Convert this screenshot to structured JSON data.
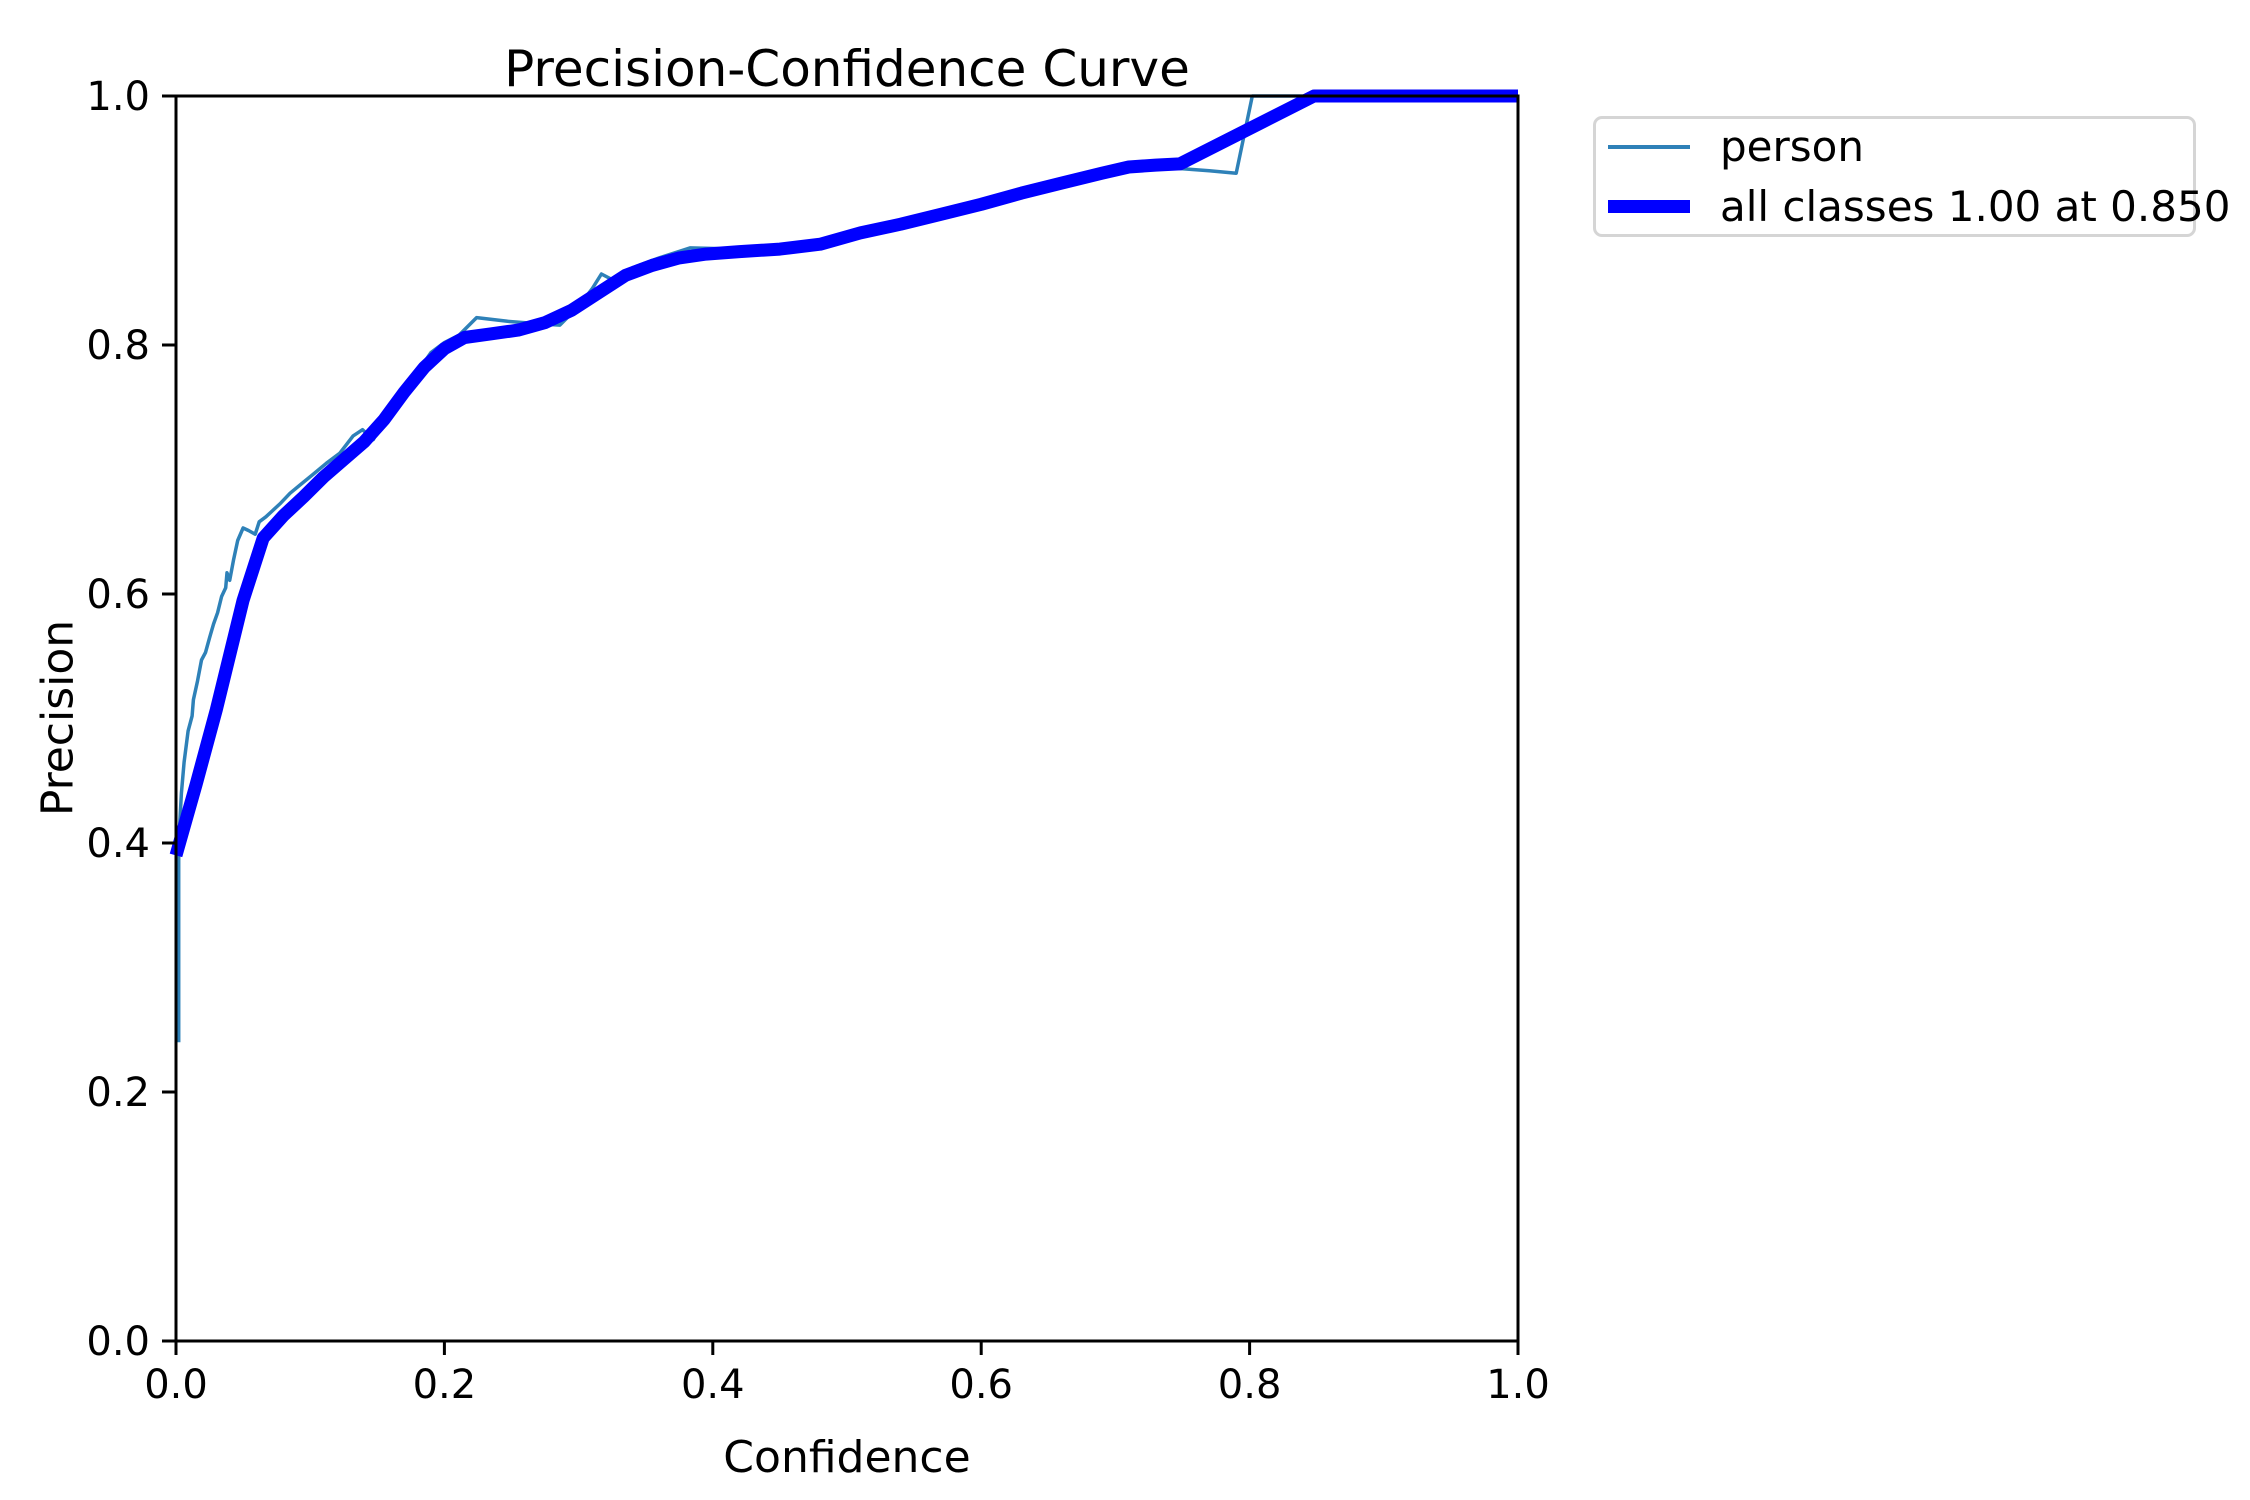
{
  "chart_data": {
    "type": "line",
    "title": "Precision-Confidence Curve",
    "xlabel": "Confidence",
    "ylabel": "Precision",
    "xlim": [
      0.0,
      1.0
    ],
    "ylim": [
      0.0,
      1.0
    ],
    "x_ticks": [
      "0.0",
      "0.2",
      "0.4",
      "0.6",
      "0.8",
      "1.0"
    ],
    "y_ticks": [
      "0.0",
      "0.2",
      "0.4",
      "0.6",
      "0.8",
      "1.0"
    ],
    "grid": false,
    "legend": {
      "position": "outside-top-right",
      "border_color": "#d5d5d5",
      "background": "#ffffff"
    },
    "axis_color": "#000000",
    "series": [
      {
        "name": "person",
        "label": "person",
        "color": "#2e81b8",
        "line_width": 3.5,
        "points": [
          [
            0.002,
            0.24
          ],
          [
            0.002,
            0.4
          ],
          [
            0.004,
            0.44
          ],
          [
            0.006,
            0.465
          ],
          [
            0.009,
            0.49
          ],
          [
            0.012,
            0.502
          ],
          [
            0.013,
            0.515
          ],
          [
            0.016,
            0.53
          ],
          [
            0.019,
            0.547
          ],
          [
            0.022,
            0.553
          ],
          [
            0.025,
            0.565
          ],
          [
            0.028,
            0.576
          ],
          [
            0.031,
            0.585
          ],
          [
            0.034,
            0.598
          ],
          [
            0.037,
            0.605
          ],
          [
            0.038,
            0.617
          ],
          [
            0.04,
            0.611
          ],
          [
            0.043,
            0.628
          ],
          [
            0.046,
            0.643
          ],
          [
            0.05,
            0.653
          ],
          [
            0.054,
            0.651
          ],
          [
            0.059,
            0.648
          ],
          [
            0.062,
            0.658
          ],
          [
            0.067,
            0.662
          ],
          [
            0.072,
            0.667
          ],
          [
            0.078,
            0.673
          ],
          [
            0.085,
            0.681
          ],
          [
            0.093,
            0.688
          ],
          [
            0.102,
            0.696
          ],
          [
            0.112,
            0.705
          ],
          [
            0.122,
            0.713
          ],
          [
            0.132,
            0.727
          ],
          [
            0.139,
            0.732
          ],
          [
            0.147,
            0.724
          ],
          [
            0.154,
            0.738
          ],
          [
            0.163,
            0.752
          ],
          [
            0.172,
            0.766
          ],
          [
            0.181,
            0.78
          ],
          [
            0.19,
            0.794
          ],
          [
            0.2,
            0.802
          ],
          [
            0.211,
            0.808
          ],
          [
            0.224,
            0.822
          ],
          [
            0.247,
            0.819
          ],
          [
            0.27,
            0.817
          ],
          [
            0.286,
            0.816
          ],
          [
            0.3,
            0.831
          ],
          [
            0.31,
            0.845
          ],
          [
            0.317,
            0.857
          ],
          [
            0.326,
            0.852
          ],
          [
            0.34,
            0.862
          ],
          [
            0.36,
            0.87
          ],
          [
            0.383,
            0.878
          ],
          [
            0.42,
            0.877
          ],
          [
            0.46,
            0.879
          ],
          [
            0.5,
            0.888
          ],
          [
            0.55,
            0.902
          ],
          [
            0.6,
            0.915
          ],
          [
            0.65,
            0.93
          ],
          [
            0.69,
            0.941
          ],
          [
            0.715,
            0.944
          ],
          [
            0.745,
            0.942
          ],
          [
            0.77,
            0.94
          ],
          [
            0.79,
            0.938
          ],
          [
            0.802,
            1.0
          ],
          [
            1.0,
            1.0
          ]
        ]
      },
      {
        "name": "all-classes",
        "label": "all classes 1.00 at 0.850",
        "color": "#0000ff",
        "line_width": 13,
        "points": [
          [
            0.0,
            0.39
          ],
          [
            0.015,
            0.447
          ],
          [
            0.03,
            0.507
          ],
          [
            0.05,
            0.595
          ],
          [
            0.065,
            0.645
          ],
          [
            0.08,
            0.663
          ],
          [
            0.095,
            0.678
          ],
          [
            0.11,
            0.694
          ],
          [
            0.125,
            0.708
          ],
          [
            0.14,
            0.722
          ],
          [
            0.155,
            0.74
          ],
          [
            0.17,
            0.762
          ],
          [
            0.185,
            0.782
          ],
          [
            0.2,
            0.797
          ],
          [
            0.215,
            0.806
          ],
          [
            0.235,
            0.809
          ],
          [
            0.255,
            0.812
          ],
          [
            0.275,
            0.818
          ],
          [
            0.295,
            0.828
          ],
          [
            0.315,
            0.842
          ],
          [
            0.335,
            0.856
          ],
          [
            0.355,
            0.864
          ],
          [
            0.375,
            0.87
          ],
          [
            0.395,
            0.873
          ],
          [
            0.42,
            0.875
          ],
          [
            0.45,
            0.877
          ],
          [
            0.48,
            0.881
          ],
          [
            0.51,
            0.89
          ],
          [
            0.54,
            0.897
          ],
          [
            0.57,
            0.905
          ],
          [
            0.6,
            0.913
          ],
          [
            0.63,
            0.922
          ],
          [
            0.66,
            0.93
          ],
          [
            0.69,
            0.938
          ],
          [
            0.71,
            0.943
          ],
          [
            0.73,
            0.9445
          ],
          [
            0.748,
            0.9455
          ],
          [
            0.848,
            1.0
          ],
          [
            1.0,
            1.0
          ]
        ]
      }
    ]
  }
}
